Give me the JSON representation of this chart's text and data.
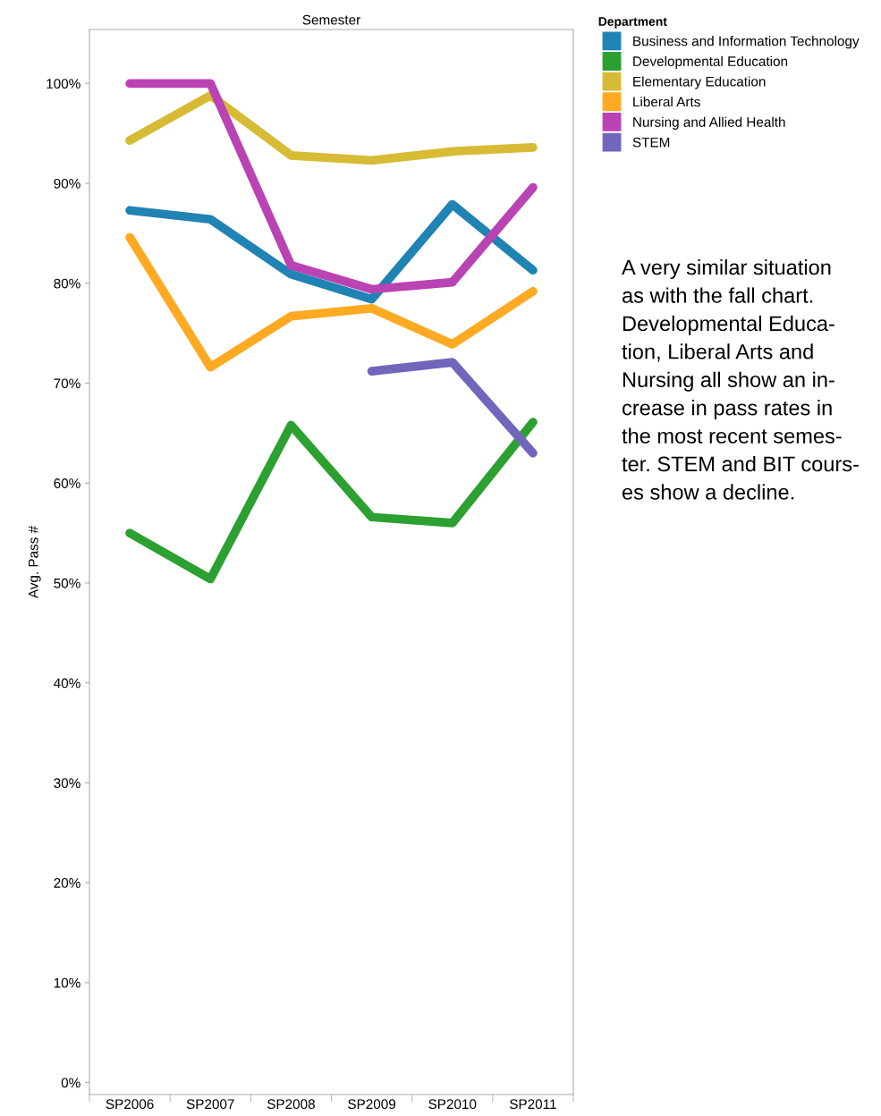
{
  "chart_data": {
    "type": "line",
    "xlabel": "Semester",
    "ylabel": "Avg. Pass #",
    "legend_title": "Department",
    "legend": "top right",
    "categories": [
      "SP2006",
      "SP2007",
      "SP2008",
      "SP2009",
      "SP2010",
      "SP2011"
    ],
    "series": [
      {
        "name": "Business and Information Technology",
        "color": "#1f83b4",
        "values": [
          87.3,
          86.4,
          80.9,
          78.4,
          87.9,
          81.3
        ]
      },
      {
        "name": "Developmental Education",
        "color": "#2ca030",
        "values": [
          55.0,
          50.4,
          65.8,
          56.6,
          56.0,
          66.1
        ]
      },
      {
        "name": "Elementary Education",
        "color": "#d8bb35",
        "values": [
          94.3,
          98.8,
          92.8,
          92.3,
          93.2,
          93.6
        ]
      },
      {
        "name": "Liberal Arts",
        "color": "#ffaa22",
        "values": [
          84.6,
          71.6,
          76.7,
          77.5,
          73.9,
          79.2
        ]
      },
      {
        "name": "Nursing and Allied Health",
        "color": "#ba43b4",
        "values": [
          100,
          100,
          81.8,
          79.4,
          80.1,
          89.6
        ]
      },
      {
        "name": "STEM",
        "color": "#7066bb",
        "values": [
          null,
          null,
          null,
          71.2,
          72.1,
          63.0
        ]
      }
    ],
    "ylim": [
      -1.2,
      105.4
    ],
    "yticks": [
      {
        "value": 0,
        "label": "0%"
      },
      {
        "value": 10,
        "label": "10%"
      },
      {
        "value": 20,
        "label": "20%"
      },
      {
        "value": 30,
        "label": "30%"
      },
      {
        "value": 40,
        "label": "40%"
      },
      {
        "value": 50,
        "label": "50%"
      },
      {
        "value": 60,
        "label": "60%"
      },
      {
        "value": 70,
        "label": "70%"
      },
      {
        "value": 80,
        "label": "80%"
      },
      {
        "value": 90,
        "label": "90%"
      },
      {
        "value": 100,
        "label": "100%"
      }
    ],
    "grid": false,
    "marker": "none",
    "line_style": "solid",
    "annotations": [
      "A very similar situation\nas with the fall chart.\nDevelopmental Educa-\ntion, Liberal Arts and\nNursing all show an in-\ncrease in pass rates in\nthe most recent semes-\nter. STEM and BIT cours-\nes show a decline."
    ]
  }
}
